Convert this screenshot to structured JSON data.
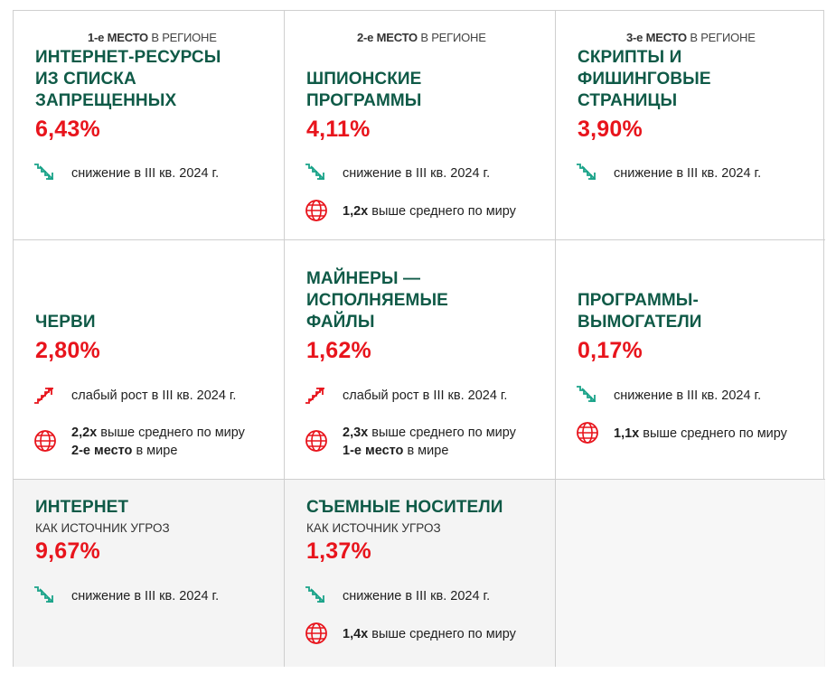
{
  "colors": {
    "accent_green": "#0f5a47",
    "accent_red": "#e8141c",
    "icon_green": "#1aa389",
    "border": "#cfcfcf"
  },
  "cells": [
    {
      "place_bold": "1-е МЕСТО",
      "place_rest": " В РЕГИОНЕ",
      "title": [
        "ИНТЕРНЕТ-РЕСУРСЫ",
        "ИЗ СПИСКА",
        "ЗАПРЕЩЕННЫХ"
      ],
      "percent": "6,43%",
      "trend": {
        "icon": "trend-down-icon",
        "text": "снижение в III кв. 2024 г."
      }
    },
    {
      "place_bold": "2-е МЕСТО",
      "place_rest": " В РЕГИОНЕ",
      "title": [
        "ШПИОНСКИЕ",
        "ПРОГРАММЫ"
      ],
      "percent": "4,11%",
      "trend": {
        "icon": "trend-down-icon",
        "text": "снижение в III кв. 2024 г."
      },
      "world": {
        "icon": "globe-icon",
        "bold": "1,2х",
        "rest": " выше среднего по миру"
      }
    },
    {
      "place_bold": "3-е МЕСТО",
      "place_rest": " В РЕГИОНЕ",
      "title": [
        "СКРИПТЫ И",
        "ФИШИНГОВЫЕ",
        "СТРАНИЦЫ"
      ],
      "percent": "3,90%",
      "trend": {
        "icon": "trend-down-icon",
        "text": "снижение в III кв. 2024 г."
      }
    },
    {
      "title": [
        "ЧЕРВИ"
      ],
      "percent": "2,80%",
      "trend": {
        "icon": "trend-up-icon",
        "text": "слабый рост в III кв. 2024 г."
      },
      "world": {
        "icon": "globe-icon",
        "bold": "2,2х",
        "rest": " выше среднего по миру",
        "bold2": "2-е место",
        "rest2": " в мире"
      }
    },
    {
      "title": [
        "МАЙНЕРЫ —",
        "ИСПОЛНЯЕМЫЕ",
        "ФАЙЛЫ"
      ],
      "percent": "1,62%",
      "trend": {
        "icon": "trend-up-icon",
        "text": "слабый рост в III кв. 2024 г."
      },
      "world": {
        "icon": "globe-icon",
        "bold": "2,3х",
        "rest": " выше среднего по миру",
        "bold2": "1-е место",
        "rest2": " в мире"
      }
    },
    {
      "title": [
        "ПРОГРАММЫ-",
        "ВЫМОГАТЕЛИ"
      ],
      "percent": "0,17%",
      "trend": {
        "icon": "trend-down-icon",
        "text": "снижение в III кв. 2024 г."
      },
      "world": {
        "icon": "globe-icon",
        "bold": "1,1х",
        "rest": " выше среднего по миру"
      }
    },
    {
      "title": [
        "ИНТЕРНЕТ"
      ],
      "subtitle": "КАК ИСТОЧНИК УГРОЗ",
      "percent": "9,67%",
      "trend": {
        "icon": "trend-down-icon",
        "text": "снижение в III кв. 2024 г."
      }
    },
    {
      "title": [
        "СЪЕМНЫЕ НОСИТЕЛИ"
      ],
      "subtitle": "КАК ИСТОЧНИК УГРОЗ",
      "percent": "1,37%",
      "trend": {
        "icon": "trend-down-icon",
        "text": "снижение в III кв. 2024 г."
      },
      "world": {
        "icon": "globe-icon",
        "bold": "1,4х",
        "rest": " выше среднего по миру"
      }
    }
  ]
}
